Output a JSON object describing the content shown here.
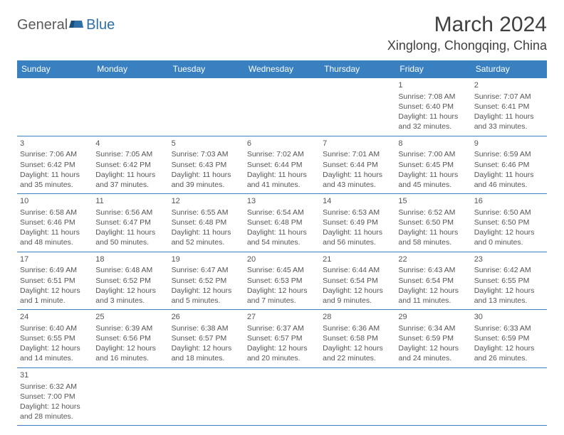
{
  "logo": {
    "general": "General",
    "blue": "Blue"
  },
  "title": "March 2024",
  "location": "Xinglong, Chongqing, China",
  "colors": {
    "header_bg": "#3880c0",
    "header_text": "#ffffff",
    "border": "#3880c0",
    "body_text": "#555555",
    "title_text": "#404040"
  },
  "weekdays": [
    "Sunday",
    "Monday",
    "Tuesday",
    "Wednesday",
    "Thursday",
    "Friday",
    "Saturday"
  ],
  "weeks": [
    [
      null,
      null,
      null,
      null,
      null,
      {
        "d": "1",
        "sr": "7:08 AM",
        "ss": "6:40 PM",
        "dl": "11 hours and 32 minutes."
      },
      {
        "d": "2",
        "sr": "7:07 AM",
        "ss": "6:41 PM",
        "dl": "11 hours and 33 minutes."
      }
    ],
    [
      {
        "d": "3",
        "sr": "7:06 AM",
        "ss": "6:42 PM",
        "dl": "11 hours and 35 minutes."
      },
      {
        "d": "4",
        "sr": "7:05 AM",
        "ss": "6:42 PM",
        "dl": "11 hours and 37 minutes."
      },
      {
        "d": "5",
        "sr": "7:03 AM",
        "ss": "6:43 PM",
        "dl": "11 hours and 39 minutes."
      },
      {
        "d": "6",
        "sr": "7:02 AM",
        "ss": "6:44 PM",
        "dl": "11 hours and 41 minutes."
      },
      {
        "d": "7",
        "sr": "7:01 AM",
        "ss": "6:44 PM",
        "dl": "11 hours and 43 minutes."
      },
      {
        "d": "8",
        "sr": "7:00 AM",
        "ss": "6:45 PM",
        "dl": "11 hours and 45 minutes."
      },
      {
        "d": "9",
        "sr": "6:59 AM",
        "ss": "6:46 PM",
        "dl": "11 hours and 46 minutes."
      }
    ],
    [
      {
        "d": "10",
        "sr": "6:58 AM",
        "ss": "6:46 PM",
        "dl": "11 hours and 48 minutes."
      },
      {
        "d": "11",
        "sr": "6:56 AM",
        "ss": "6:47 PM",
        "dl": "11 hours and 50 minutes."
      },
      {
        "d": "12",
        "sr": "6:55 AM",
        "ss": "6:48 PM",
        "dl": "11 hours and 52 minutes."
      },
      {
        "d": "13",
        "sr": "6:54 AM",
        "ss": "6:48 PM",
        "dl": "11 hours and 54 minutes."
      },
      {
        "d": "14",
        "sr": "6:53 AM",
        "ss": "6:49 PM",
        "dl": "11 hours and 56 minutes."
      },
      {
        "d": "15",
        "sr": "6:52 AM",
        "ss": "6:50 PM",
        "dl": "11 hours and 58 minutes."
      },
      {
        "d": "16",
        "sr": "6:50 AM",
        "ss": "6:50 PM",
        "dl": "12 hours and 0 minutes."
      }
    ],
    [
      {
        "d": "17",
        "sr": "6:49 AM",
        "ss": "6:51 PM",
        "dl": "12 hours and 1 minute."
      },
      {
        "d": "18",
        "sr": "6:48 AM",
        "ss": "6:52 PM",
        "dl": "12 hours and 3 minutes."
      },
      {
        "d": "19",
        "sr": "6:47 AM",
        "ss": "6:52 PM",
        "dl": "12 hours and 5 minutes."
      },
      {
        "d": "20",
        "sr": "6:45 AM",
        "ss": "6:53 PM",
        "dl": "12 hours and 7 minutes."
      },
      {
        "d": "21",
        "sr": "6:44 AM",
        "ss": "6:54 PM",
        "dl": "12 hours and 9 minutes."
      },
      {
        "d": "22",
        "sr": "6:43 AM",
        "ss": "6:54 PM",
        "dl": "12 hours and 11 minutes."
      },
      {
        "d": "23",
        "sr": "6:42 AM",
        "ss": "6:55 PM",
        "dl": "12 hours and 13 minutes."
      }
    ],
    [
      {
        "d": "24",
        "sr": "6:40 AM",
        "ss": "6:55 PM",
        "dl": "12 hours and 14 minutes."
      },
      {
        "d": "25",
        "sr": "6:39 AM",
        "ss": "6:56 PM",
        "dl": "12 hours and 16 minutes."
      },
      {
        "d": "26",
        "sr": "6:38 AM",
        "ss": "6:57 PM",
        "dl": "12 hours and 18 minutes."
      },
      {
        "d": "27",
        "sr": "6:37 AM",
        "ss": "6:57 PM",
        "dl": "12 hours and 20 minutes."
      },
      {
        "d": "28",
        "sr": "6:36 AM",
        "ss": "6:58 PM",
        "dl": "12 hours and 22 minutes."
      },
      {
        "d": "29",
        "sr": "6:34 AM",
        "ss": "6:59 PM",
        "dl": "12 hours and 24 minutes."
      },
      {
        "d": "30",
        "sr": "6:33 AM",
        "ss": "6:59 PM",
        "dl": "12 hours and 26 minutes."
      }
    ],
    [
      {
        "d": "31",
        "sr": "6:32 AM",
        "ss": "7:00 PM",
        "dl": "12 hours and 28 minutes."
      },
      null,
      null,
      null,
      null,
      null,
      null
    ]
  ],
  "labels": {
    "sunrise": "Sunrise: ",
    "sunset": "Sunset: ",
    "daylight": "Daylight: "
  }
}
